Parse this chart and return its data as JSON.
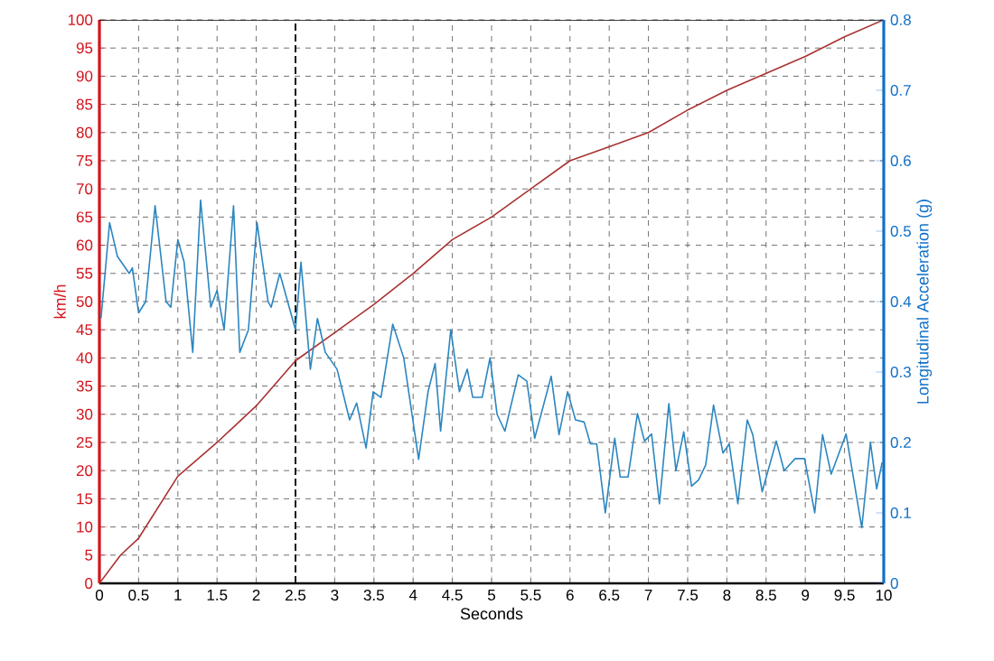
{
  "chart_data": {
    "type": "line",
    "xlabel": "Seconds",
    "ylabel": "km/h",
    "y2label": "Longitudinal Acceleration (g)",
    "xlim": [
      0,
      10
    ],
    "xticks": [
      0,
      0.5,
      1,
      1.5,
      2,
      2.5,
      3,
      3.5,
      4,
      4.5,
      5,
      5.5,
      6,
      6.5,
      7,
      7.5,
      8,
      8.5,
      9,
      9.5,
      10
    ],
    "ylim": [
      0,
      100
    ],
    "yticks": [
      0,
      5,
      10,
      15,
      20,
      25,
      30,
      35,
      40,
      45,
      50,
      55,
      60,
      65,
      70,
      75,
      80,
      85,
      90,
      95,
      100
    ],
    "y2lim": [
      0,
      0.8
    ],
    "y2ticks": [
      0,
      0.1,
      0.2,
      0.3,
      0.4,
      0.5,
      0.6,
      0.7,
      0.8
    ],
    "grid": true,
    "line_style": "solid",
    "marker": "none",
    "ref_lines": [
      {
        "axis": "x",
        "value": 2.5,
        "color": "#000000",
        "line_style": "dashed"
      }
    ],
    "series": [
      {
        "color": "#a83232",
        "x": [
          0,
          0.27,
          0.5,
          1,
          1.5,
          2,
          2.5,
          3,
          3.5,
          4,
          4.5,
          5,
          5.5,
          6,
          6.5,
          7,
          7.5,
          8,
          8.5,
          9,
          9.5,
          10
        ],
        "values": [
          0,
          5,
          8,
          19,
          25,
          31.5,
          39.5,
          44.5,
          49.5,
          55,
          61,
          65,
          70,
          75,
          77.5,
          80,
          84,
          87.5,
          90.5,
          93.5,
          97,
          100
        ]
      },
      {
        "color": "#2b86c0",
        "axis": "y2",
        "x": [
          0.02,
          0.13,
          0.23,
          0.38,
          0.42,
          0.5,
          0.59,
          0.71,
          0.85,
          0.91,
          1.0,
          1.08,
          1.19,
          1.29,
          1.42,
          1.5,
          1.59,
          1.71,
          1.79,
          1.9,
          2.01,
          2.15,
          2.19,
          2.3,
          2.42,
          2.5,
          2.57,
          2.69,
          2.78,
          2.88,
          3.03,
          3.19,
          3.28,
          3.4,
          3.49,
          3.59,
          3.74,
          3.88,
          4.07,
          4.19,
          4.28,
          4.35,
          4.48,
          4.59,
          4.69,
          4.76,
          4.88,
          4.98,
          5.07,
          5.17,
          5.34,
          5.45,
          5.55,
          5.76,
          5.86,
          5.97,
          6.07,
          6.18,
          6.26,
          6.34,
          6.45,
          6.57,
          6.64,
          6.74,
          6.86,
          6.95,
          7.04,
          7.14,
          7.26,
          7.35,
          7.45,
          7.55,
          7.64,
          7.73,
          7.83,
          7.95,
          8.03,
          8.14,
          8.26,
          8.33,
          8.45,
          8.63,
          8.73,
          8.87,
          8.99,
          9.12,
          9.22,
          9.33,
          9.52,
          9.72,
          9.83,
          9.91,
          9.98
        ],
        "values": [
          0.376,
          0.512,
          0.464,
          0.44,
          0.448,
          0.384,
          0.4,
          0.536,
          0.4,
          0.392,
          0.488,
          0.456,
          0.328,
          0.544,
          0.392,
          0.416,
          0.36,
          0.536,
          0.328,
          0.36,
          0.512,
          0.4,
          0.392,
          0.44,
          0.392,
          0.36,
          0.456,
          0.304,
          0.376,
          0.328,
          0.304,
          0.232,
          0.256,
          0.192,
          0.272,
          0.264,
          0.368,
          0.32,
          0.176,
          0.272,
          0.312,
          0.216,
          0.36,
          0.272,
          0.304,
          0.264,
          0.264,
          0.32,
          0.24,
          0.216,
          0.296,
          0.287,
          0.206,
          0.294,
          0.211,
          0.272,
          0.232,
          0.229,
          0.198,
          0.198,
          0.1,
          0.206,
          0.151,
          0.151,
          0.241,
          0.202,
          0.212,
          0.113,
          0.255,
          0.16,
          0.215,
          0.138,
          0.147,
          0.168,
          0.253,
          0.185,
          0.198,
          0.113,
          0.232,
          0.211,
          0.13,
          0.202,
          0.16,
          0.177,
          0.177,
          0.1,
          0.211,
          0.155,
          0.212,
          0.079,
          0.2,
          0.134,
          0.172
        ]
      }
    ]
  }
}
